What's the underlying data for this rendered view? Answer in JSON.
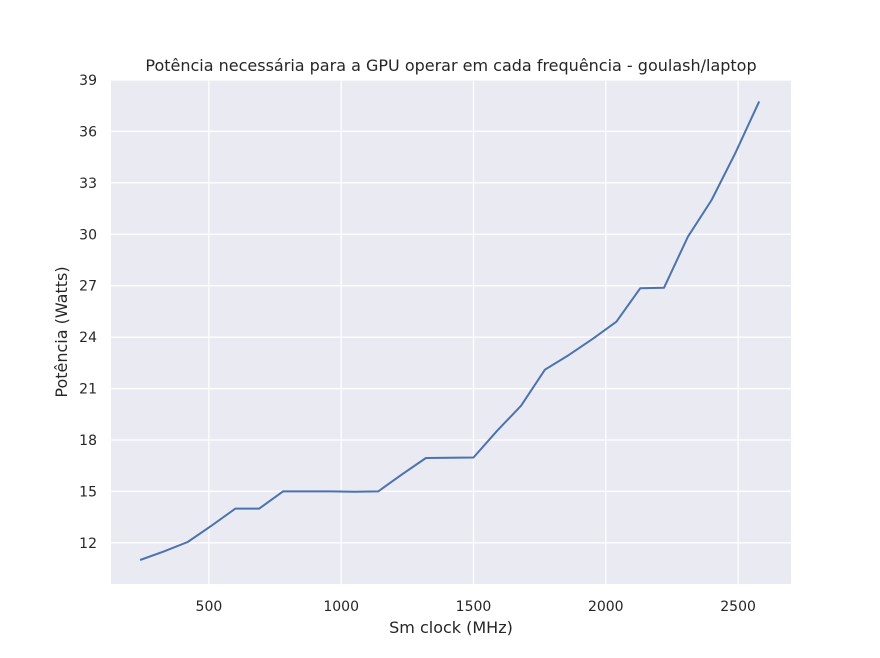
{
  "chart_data": {
    "type": "line",
    "title": "Potência necessária para a GPU operar em cada frequência - goulash/laptop",
    "xlabel": "Sm clock (MHz)",
    "ylabel": "Potência (Watts)",
    "xlim": [
      130,
      2700
    ],
    "ylim": [
      9.6,
      39
    ],
    "xticks": [
      500,
      1000,
      1500,
      2000,
      2500
    ],
    "yticks": [
      12,
      15,
      18,
      21,
      24,
      27,
      30,
      33,
      36,
      39
    ],
    "grid": true,
    "background": "#eaeaf2",
    "grid_color": "#ffffff",
    "series": [
      {
        "color": "#4c72b0",
        "x": [
          240,
          330,
          420,
          510,
          600,
          690,
          780,
          870,
          960,
          1050,
          1140,
          1230,
          1320,
          1410,
          1500,
          1590,
          1680,
          1770,
          1860,
          1950,
          2040,
          2130,
          2220,
          2310,
          2400,
          2490,
          2580
        ],
        "y": [
          11.0,
          11.5,
          12.05,
          13.0,
          14.0,
          14.0,
          15.0,
          15.0,
          15.0,
          14.98,
          15.0,
          16.0,
          16.95,
          16.97,
          16.98,
          18.55,
          20.0,
          22.1,
          22.95,
          23.9,
          24.9,
          26.85,
          26.88,
          29.85,
          32.0,
          34.75,
          37.75
        ]
      }
    ]
  }
}
